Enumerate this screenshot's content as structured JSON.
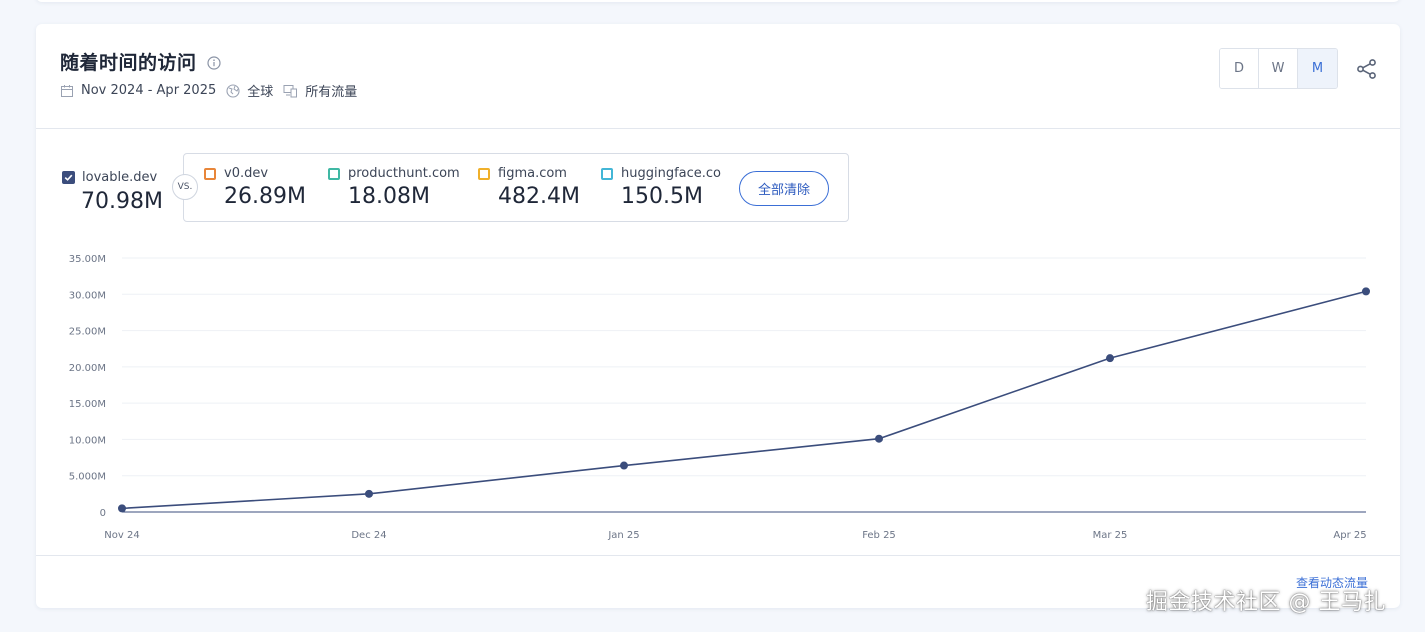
{
  "header": {
    "title": "随着时间的访问",
    "date_range": "Nov 2024 - Apr 2025",
    "region": "全球",
    "traffic": "所有流量"
  },
  "range_toggle": {
    "options": [
      "D",
      "W",
      "M"
    ],
    "active": "M"
  },
  "main_site": {
    "name": "lovable.dev",
    "value": "70.98M",
    "color": "#3b4d7c"
  },
  "vs_label": "VS.",
  "competitors": [
    {
      "name": "v0.dev",
      "value": "26.89M",
      "color": "#e8863a"
    },
    {
      "name": "producthunt.com",
      "value": "18.08M",
      "color": "#3fb8a4"
    },
    {
      "name": "figma.com",
      "value": "482.4M",
      "color": "#f0b02a"
    },
    {
      "name": "huggingface.co",
      "value": "150.5M",
      "color": "#43b6d6"
    }
  ],
  "clear_all_label": "全部清除",
  "footer_link": "查看动态流量",
  "watermark": "掘金技术社区 @ 王马扎",
  "chart_data": {
    "type": "line",
    "x": [
      "Nov 24",
      "Dec 24",
      "Jan 25",
      "Feb 25",
      "Mar 25",
      "Apr 25"
    ],
    "y_ticks": [
      "0",
      "5.000M",
      "10.00M",
      "15.00M",
      "20.00M",
      "25.00M",
      "30.00M",
      "35.00M"
    ],
    "ylim": [
      0,
      35000000
    ],
    "series": [
      {
        "values": [
          500000,
          2500000,
          6400000,
          10100000,
          21200000,
          30400000
        ],
        "color": "#3b4d7c"
      }
    ]
  }
}
